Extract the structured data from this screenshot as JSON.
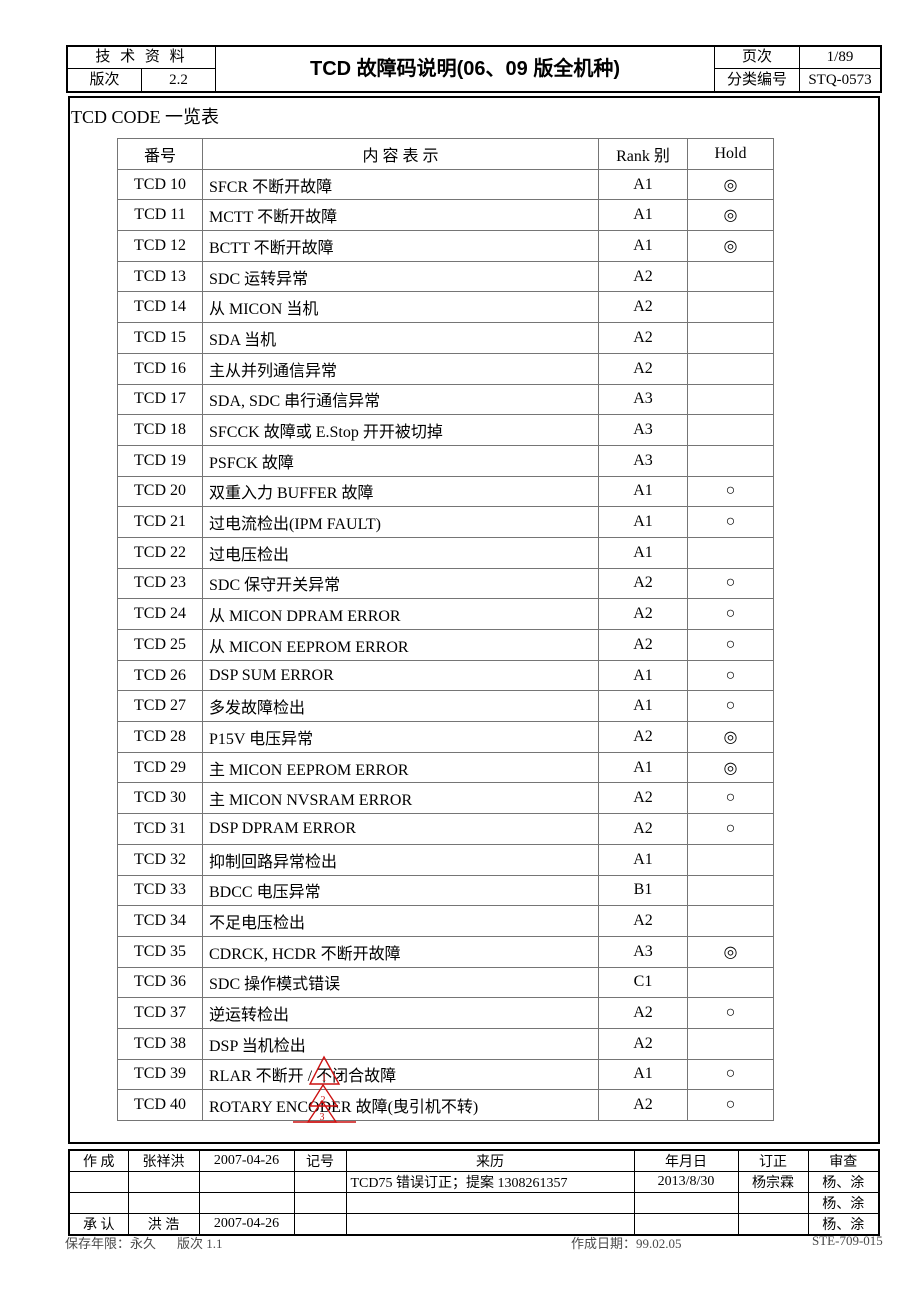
{
  "doc_header": {
    "category": "技 术 资 料",
    "edition_label": "版次",
    "edition_value": "2.2",
    "title": "TCD 故障码说明(06、09 版全机种)",
    "page_label": "页次",
    "page_value": "1/89",
    "class_label": "分类编号",
    "class_value": "STQ-0573"
  },
  "section_title": "TCD CODE 一览表",
  "table": {
    "columns": {
      "no": "番号",
      "desc": "内 容 表 示",
      "rank": "Rank 别",
      "hold": "Hold"
    },
    "rows": [
      {
        "code": "TCD 10",
        "desc": "SFCR 不断开故障",
        "rank": "A1",
        "hold": "◎"
      },
      {
        "code": "TCD 11",
        "desc": "MCTT 不断开故障",
        "rank": "A1",
        "hold": "◎"
      },
      {
        "code": "TCD 12",
        "desc": "BCTT 不断开故障",
        "rank": "A1",
        "hold": "◎"
      },
      {
        "code": "TCD 13",
        "desc": "SDC 运转异常",
        "rank": "A2",
        "hold": ""
      },
      {
        "code": "TCD 14",
        "desc": "从 MICON 当机",
        "rank": "A2",
        "hold": ""
      },
      {
        "code": "TCD 15",
        "desc": "SDA 当机",
        "rank": "A2",
        "hold": ""
      },
      {
        "code": "TCD 16",
        "desc": "主从并列通信异常",
        "rank": "A2",
        "hold": ""
      },
      {
        "code": "TCD 17",
        "desc": "SDA, SDC 串行通信异常",
        "rank": "A3",
        "hold": ""
      },
      {
        "code": "TCD 18",
        "desc": "SFCCK 故障或 E.Stop 开开被切掉",
        "rank": "A3",
        "hold": ""
      },
      {
        "code": "TCD 19",
        "desc": "PSFCK 故障",
        "rank": "A3",
        "hold": ""
      },
      {
        "code": "TCD 20",
        "desc": "双重入力 BUFFER 故障",
        "rank": "A1",
        "hold": "○"
      },
      {
        "code": "TCD 21",
        "desc": "过电流检出(IPM FAULT)",
        "rank": "A1",
        "hold": "○"
      },
      {
        "code": "TCD 22",
        "desc": "过电压检出",
        "rank": "A1",
        "hold": ""
      },
      {
        "code": "TCD 23",
        "desc": "SDC 保守开关异常",
        "rank": "A2",
        "hold": "○"
      },
      {
        "code": "TCD 24",
        "desc": "从 MICON DPRAM ERROR",
        "rank": "A2",
        "hold": "○"
      },
      {
        "code": "TCD 25",
        "desc": "从 MICON EEPROM ERROR",
        "rank": "A2",
        "hold": "○"
      },
      {
        "code": "TCD 26",
        "desc": "DSP SUM ERROR",
        "rank": "A1",
        "hold": "○"
      },
      {
        "code": "TCD 27",
        "desc": "多发故障检出",
        "rank": "A1",
        "hold": "○"
      },
      {
        "code": "TCD 28",
        "desc": "P15V 电压异常",
        "rank": "A2",
        "hold": "◎"
      },
      {
        "code": "TCD 29",
        "desc": "主 MICON EEPROM ERROR",
        "rank": "A1",
        "hold": "◎"
      },
      {
        "code": "TCD 30",
        "desc": "主 MICON NVSRAM ERROR",
        "rank": "A2",
        "hold": "○"
      },
      {
        "code": "TCD 31",
        "desc": "DSP DPRAM ERROR",
        "rank": "A2",
        "hold": "○"
      },
      {
        "code": "TCD 32",
        "desc": "抑制回路异常检出",
        "rank": "A1",
        "hold": ""
      },
      {
        "code": "TCD 33",
        "desc": "BDCC 电压异常",
        "rank": "B1",
        "hold": ""
      },
      {
        "code": "TCD 34",
        "desc": "不足电压检出",
        "rank": "A2",
        "hold": ""
      },
      {
        "code": "TCD 35",
        "desc": "CDRCK, HCDR 不断开故障",
        "rank": "A3",
        "hold": "◎"
      },
      {
        "code": "TCD 36",
        "desc": "SDC 操作模式错误",
        "rank": "C1",
        "hold": ""
      },
      {
        "code": "TCD 37",
        "desc": "逆运转检出",
        "rank": "A2",
        "hold": "○"
      },
      {
        "code": "TCD 38",
        "desc": "DSP 当机检出",
        "rank": "A2",
        "hold": ""
      },
      {
        "code": "TCD 39",
        "desc": "RLAR 不断开 / 不闭合故障",
        "rank": "A1",
        "hold": "○"
      },
      {
        "code": "TCD 40",
        "desc": "ROTARY ENCODER 故障(曳引机不转)",
        "rank": "A2",
        "hold": "○"
      }
    ]
  },
  "revision_marks": {
    "labels": [
      "1",
      "2",
      "3"
    ],
    "color": "#cc1111"
  },
  "footer_table": {
    "rows": [
      [
        "作 成",
        "张祥洪",
        "2007-04-26",
        "记号",
        "来历",
        "年月日",
        "订正",
        "审查"
      ],
      [
        "",
        "",
        "",
        "",
        "TCD75 错误订正；提案 1308261357",
        "2013/8/30",
        "杨宗霖",
        "杨、涂"
      ],
      [
        "",
        "",
        "",
        "",
        "",
        "",
        "",
        "杨、涂"
      ],
      [
        "承 认",
        "洪 浩",
        "2007-04-26",
        "",
        "",
        "",
        "",
        "杨、涂"
      ]
    ]
  },
  "page_bottom": {
    "retention": "保存年限：永久",
    "edition": "版次  1.1",
    "created": "作成日期：99.02.05",
    "form_no": "STE-709-015"
  }
}
